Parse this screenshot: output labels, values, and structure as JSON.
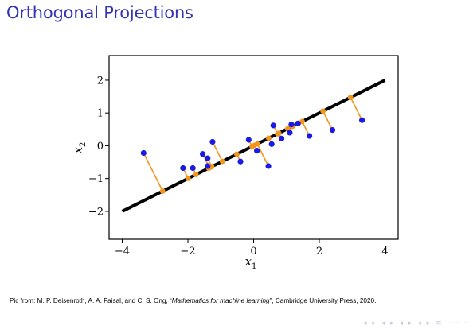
{
  "slide": {
    "title": "Orthogonal Projections",
    "caption_prefix": "Pic from: M. P. Deisenroth, A. A. Faisal, and C. S. Ong, “",
    "caption_title": "Mathematics for machine learning",
    "caption_suffix": "”, Cambridge University Press, 2020.",
    "nav_symbols": "◂ ▸ ◂ ▸ ◂ ▸ ◂ ▸ ≡ ∽∽∽"
  },
  "colors": {
    "title": "#3333b3",
    "data_point": "#1a1ae6",
    "projection": "#f0961e",
    "line": "#000000"
  },
  "chart_data": {
    "type": "scatter",
    "title": "",
    "xlabel": "x1",
    "ylabel": "x2",
    "xlim": [
      -4.4,
      4.4
    ],
    "ylim": [
      -2.85,
      2.75
    ],
    "xticks": [
      -4,
      -2,
      0,
      2,
      4
    ],
    "yticks": [
      -2,
      -1,
      0,
      1,
      2
    ],
    "x_tick_labels": [
      "−4",
      "−2",
      "0",
      "2",
      "4"
    ],
    "y_tick_labels": [
      "−2",
      "−1",
      "0",
      "1",
      "2"
    ],
    "grid": false,
    "line": {
      "slope": 0.5,
      "intercept": 0,
      "x_range": [
        -4,
        4
      ]
    },
    "points": [
      {
        "x": -3.35,
        "y": -0.22
      },
      {
        "x": -2.15,
        "y": -0.68
      },
      {
        "x": -1.85,
        "y": -0.68
      },
      {
        "x": -1.55,
        "y": -0.25
      },
      {
        "x": -1.4,
        "y": -0.38
      },
      {
        "x": -1.25,
        "y": 0.12
      },
      {
        "x": -1.4,
        "y": -0.62
      },
      {
        "x": -0.4,
        "y": -0.48
      },
      {
        "x": -0.15,
        "y": 0.18
      },
      {
        "x": 0.1,
        "y": -0.15
      },
      {
        "x": 0.45,
        "y": -0.62
      },
      {
        "x": 0.55,
        "y": 0.05
      },
      {
        "x": 0.6,
        "y": 0.62
      },
      {
        "x": 0.85,
        "y": 0.22
      },
      {
        "x": 1.1,
        "y": 0.4
      },
      {
        "x": 1.15,
        "y": 0.65
      },
      {
        "x": 1.35,
        "y": 0.68
      },
      {
        "x": 1.7,
        "y": 0.3
      },
      {
        "x": 2.4,
        "y": 0.48
      },
      {
        "x": 3.3,
        "y": 0.78
      }
    ]
  }
}
